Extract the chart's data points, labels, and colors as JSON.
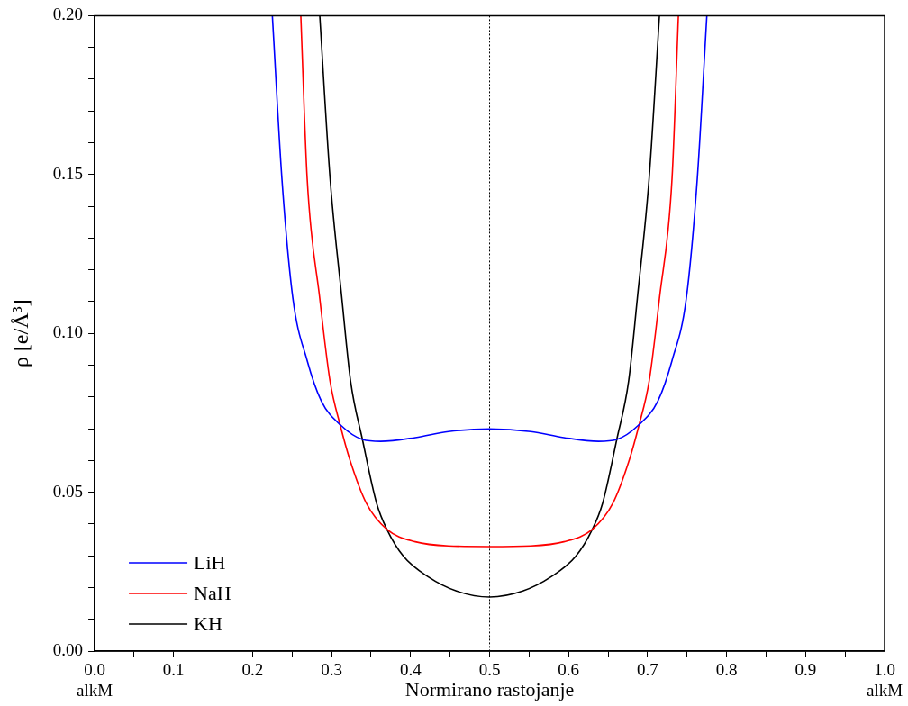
{
  "chart_data": {
    "type": "line",
    "xlabel": "Normirano rastojanje",
    "ylabel": "ρ [e/Å³]",
    "xlim": [
      0,
      1
    ],
    "ylim": [
      0,
      0.2
    ],
    "xticks": [
      {
        "value": 0,
        "label": "0.0\nalkM"
      },
      {
        "value": 0.05,
        "label": null
      },
      0.1,
      {
        "value": 0.15,
        "label": null
      },
      0.2,
      {
        "value": 0.25,
        "label": null
      },
      0.3,
      {
        "value": 0.35,
        "label": null
      },
      0.4,
      {
        "value": 0.45,
        "label": null
      },
      0.5,
      {
        "value": 0.55,
        "label": null
      },
      0.6,
      {
        "value": 0.65,
        "label": null
      },
      0.7,
      {
        "value": 0.75,
        "label": null
      },
      0.8,
      {
        "value": 0.85,
        "label": null
      },
      0.9,
      {
        "value": 0.95,
        "label": null
      },
      {
        "value": 1,
        "label": "1.0\nalkM"
      }
    ],
    "yticks": [
      {
        "value": 0,
        "label": "0.00"
      },
      {
        "value": 0.01,
        "label": null
      },
      {
        "value": 0.02,
        "label": null
      },
      {
        "value": 0.03,
        "label": null
      },
      {
        "value": 0.04,
        "label": null
      },
      0.05,
      {
        "value": 0.06,
        "label": null
      },
      {
        "value": 0.07,
        "label": null
      },
      {
        "value": 0.08,
        "label": null
      },
      {
        "value": 0.09,
        "label": null
      },
      {
        "value": 0.1,
        "label": "0.10"
      },
      {
        "value": 0.11,
        "label": null
      },
      {
        "value": 0.12,
        "label": null
      },
      {
        "value": 0.13,
        "label": null
      },
      {
        "value": 0.14,
        "label": null
      },
      0.15,
      {
        "value": 0.16,
        "label": null
      },
      {
        "value": 0.17,
        "label": null
      },
      {
        "value": 0.18,
        "label": null
      },
      {
        "value": 0.19,
        "label": null
      },
      {
        "value": 0.2,
        "label": "0.20"
      }
    ],
    "grid": false,
    "legend": "bottom left",
    "marker": "none",
    "line_style": "solid",
    "ref_lines": [
      {
        "axis": "x",
        "value": 0.5,
        "label": null,
        "color": "#000000",
        "line_style": "dotted"
      }
    ],
    "series": [
      {
        "name": "LiH",
        "color": "#0000ff",
        "x": [
          0.225,
          0.237,
          0.251,
          0.269,
          0.287,
          0.312,
          0.339,
          0.362,
          0.406,
          0.448,
          0.5,
          0.552,
          0.594,
          0.638,
          0.661,
          0.688,
          0.713,
          0.731,
          0.749,
          0.763,
          0.775
        ],
        "values": [
          0.2,
          0.149,
          0.111,
          0.0915,
          0.0787,
          0.071,
          0.0666,
          0.066,
          0.0672,
          0.0691,
          0.0699,
          0.0691,
          0.0672,
          0.066,
          0.0666,
          0.071,
          0.0787,
          0.0915,
          0.111,
          0.149,
          0.2
        ]
      },
      {
        "name": "NaH",
        "color": "#ff0000",
        "x": [
          0.261,
          0.269,
          0.285,
          0.298,
          0.311,
          0.324,
          0.344,
          0.37,
          0.406,
          0.448,
          0.5,
          0.552,
          0.594,
          0.63,
          0.656,
          0.676,
          0.689,
          0.702,
          0.715,
          0.731,
          0.739
        ],
        "values": [
          0.2,
          0.149,
          0.111,
          0.085,
          0.071,
          0.0595,
          0.0465,
          0.0383,
          0.0344,
          0.0331,
          0.0329,
          0.0331,
          0.0344,
          0.0383,
          0.0465,
          0.0595,
          0.071,
          0.085,
          0.111,
          0.149,
          0.2
        ]
      },
      {
        "name": "KH",
        "color": "#000000",
        "x": [
          0.285,
          0.298,
          0.313,
          0.324,
          0.339,
          0.357,
          0.37,
          0.391,
          0.422,
          0.458,
          0.5,
          0.542,
          0.578,
          0.609,
          0.63,
          0.643,
          0.661,
          0.676,
          0.687,
          0.702,
          0.715
        ],
        "values": [
          0.2,
          0.149,
          0.111,
          0.085,
          0.0666,
          0.0465,
          0.0383,
          0.0298,
          0.0234,
          0.0189,
          0.017,
          0.0189,
          0.0234,
          0.0298,
          0.0383,
          0.0465,
          0.0666,
          0.085,
          0.111,
          0.149,
          0.2
        ]
      }
    ]
  }
}
